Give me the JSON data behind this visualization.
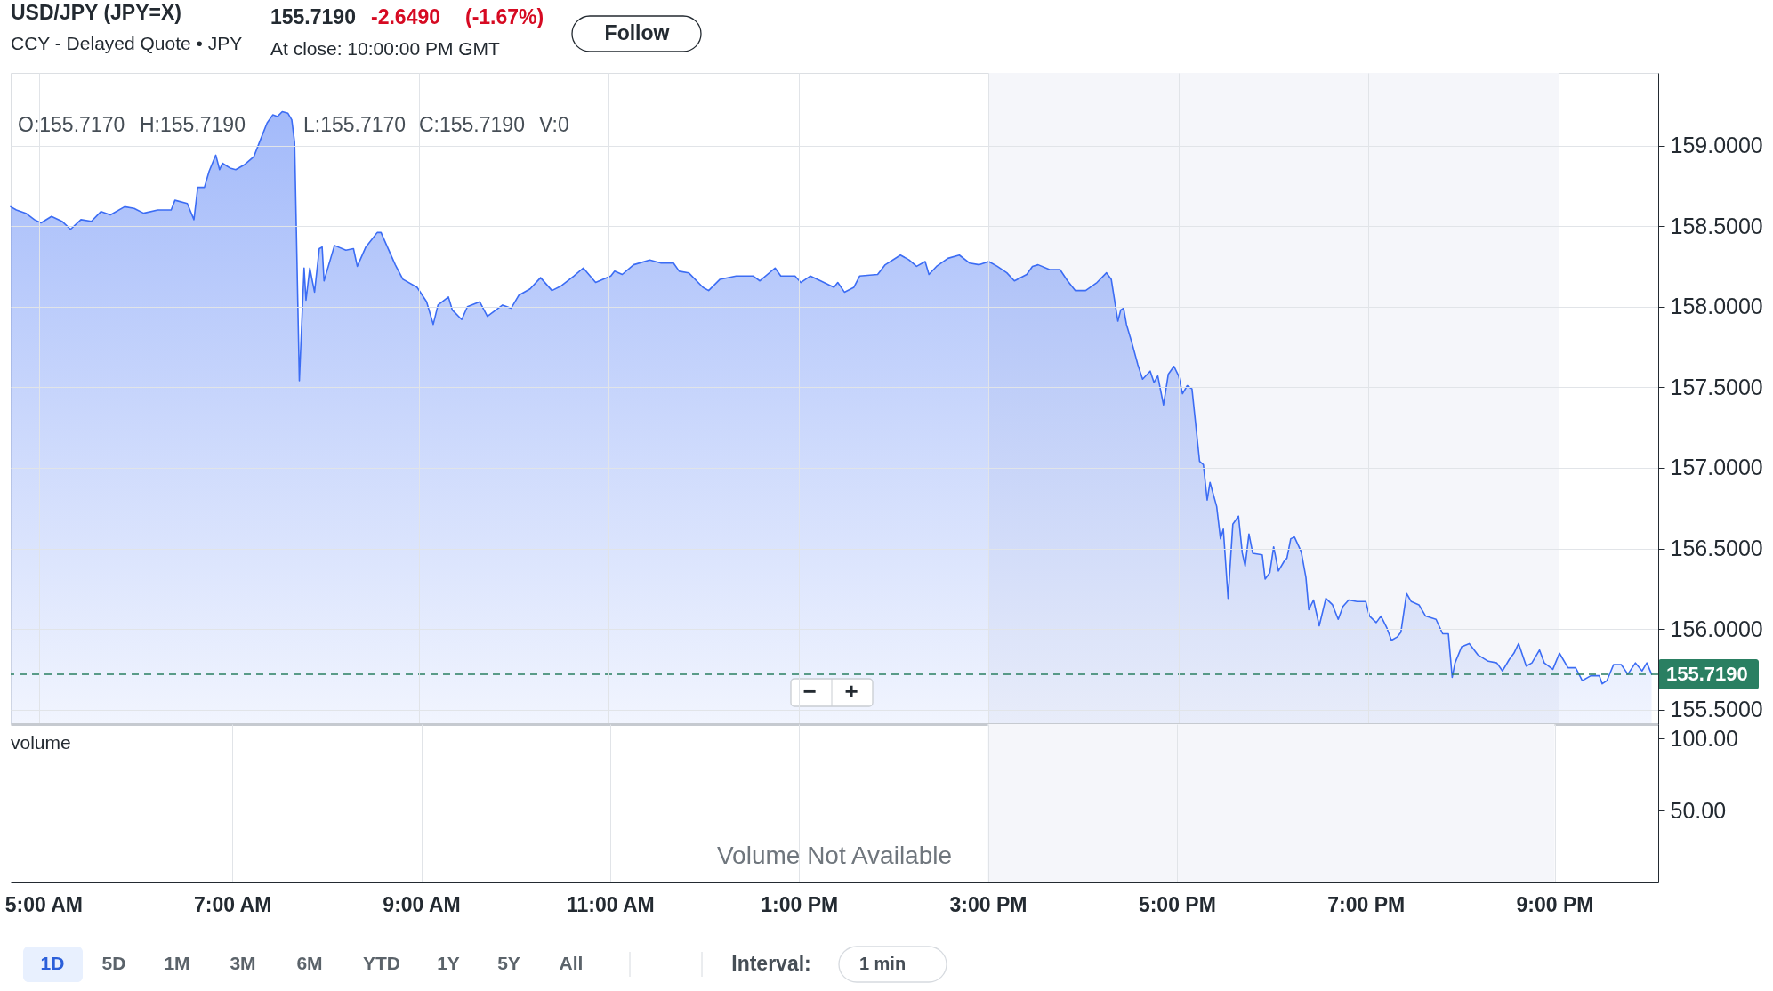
{
  "chart_data": [
    {
      "type": "area",
      "title": "USD/JPY (JPY=X)",
      "subtitle": "CCY - Delayed Quote • JPY",
      "annotations": [
        "155.7190",
        "-2.6490",
        "(-1.67%)",
        "At close: 10:00:00 PM GMT",
        "Follow",
        "O:155.7170",
        "H:155.7190",
        "L:155.7170",
        "C:155.7190",
        "V:0",
        "−",
        "+"
      ],
      "xlim": [
        4.7,
        22.05
      ],
      "xticks": [
        {
          "value": 5,
          "label": null
        },
        {
          "value": 7,
          "label": null
        },
        {
          "value": 9,
          "label": null
        },
        {
          "value": 11,
          "label": null
        },
        {
          "value": 13,
          "label": null
        },
        {
          "value": 15,
          "label": null
        },
        {
          "value": 17,
          "label": null
        },
        {
          "value": 19,
          "label": null
        },
        {
          "value": 21,
          "label": null
        }
      ],
      "ylim": [
        155.41,
        159.45
      ],
      "yticks": [
        {
          "value": 155.5,
          "label": "155.5000"
        },
        {
          "value": 156,
          "label": "156.0000"
        },
        {
          "value": 156.5,
          "label": "156.5000"
        },
        {
          "value": 157,
          "label": "157.0000"
        },
        {
          "value": 157.5,
          "label": "157.5000"
        },
        {
          "value": 158,
          "label": "158.0000"
        },
        {
          "value": 158.5,
          "label": "158.5000"
        },
        {
          "value": 159,
          "label": "159.0000"
        }
      ],
      "tick_labels": "y",
      "grid": true,
      "ref_lines": [
        {
          "axis": "y",
          "value": 155.719,
          "label": "155.7190",
          "color": "#2a7f62",
          "line_style": "dashed"
        }
      ],
      "bands": [
        {
          "axis": "x",
          "from": 15,
          "to": 21,
          "color": "#f5f6fa"
        }
      ],
      "series": [
        {
          "color": "#3b6cf4",
          "x": [
            4.7,
            4.76,
            4.86,
            4.95,
            5.02,
            5.13,
            5.24,
            5.33,
            5.44,
            5.55,
            5.65,
            5.75,
            5.9,
            6.0,
            6.1,
            6.25,
            6.39,
            6.43,
            6.56,
            6.63,
            6.67,
            6.74,
            6.79,
            6.86,
            6.9,
            6.93,
            7.01,
            7.07,
            7.16,
            7.26,
            7.32,
            7.4,
            7.46,
            7.51,
            7.56,
            7.62,
            7.66,
            7.69,
            7.74,
            7.79,
            7.81,
            7.85,
            7.9,
            7.95,
            7.98,
            8.0,
            8.11,
            8.23,
            8.31,
            8.35,
            8.44,
            8.56,
            8.6,
            8.66,
            8.75,
            8.83,
            8.98,
            9.08,
            9.15,
            9.2,
            9.31,
            9.35,
            9.45,
            9.51,
            9.64,
            9.72,
            9.88,
            9.97,
            10.05,
            10.17,
            10.28,
            10.4,
            10.5,
            10.63,
            10.73,
            10.86,
            11.02,
            11.06,
            11.14,
            11.26,
            11.43,
            11.55,
            11.68,
            11.74,
            11.84,
            11.99,
            12.05,
            12.17,
            12.34,
            12.52,
            12.59,
            12.75,
            12.81,
            12.96,
            13.02,
            13.12,
            13.23,
            13.37,
            13.41,
            13.48,
            13.58,
            13.64,
            13.83,
            13.91,
            14.07,
            14.16,
            14.24,
            14.33,
            14.37,
            14.45,
            14.57,
            14.69,
            14.8,
            14.9,
            15.0,
            15.09,
            15.19,
            15.27,
            15.4,
            15.46,
            15.52,
            15.64,
            15.75,
            15.83,
            15.91,
            16.02,
            16.14,
            16.24,
            16.29,
            16.33,
            16.36,
            16.39,
            16.42,
            16.45,
            16.51,
            16.57,
            16.62,
            16.7,
            16.74,
            16.78,
            16.84,
            16.89,
            16.95,
            17.0,
            17.04,
            17.09,
            17.14,
            17.22,
            17.26,
            17.3,
            17.33,
            17.4,
            17.44,
            17.47,
            17.52,
            17.57,
            17.63,
            17.67,
            17.7,
            17.74,
            17.78,
            17.88,
            17.91,
            17.96,
            18.0,
            18.05,
            18.11,
            18.14,
            18.18,
            18.22,
            18.29,
            18.34,
            18.37,
            18.42,
            18.48,
            18.55,
            18.62,
            18.68,
            18.73,
            18.79,
            18.88,
            18.97,
            19.01,
            19.08,
            19.13,
            19.19,
            19.24,
            19.3,
            19.34,
            19.4,
            19.45,
            19.53,
            19.6,
            19.71,
            19.78,
            19.84,
            19.88,
            19.91,
            19.98,
            20.06,
            20.15,
            20.26,
            20.35,
            20.41,
            20.48,
            20.53,
            20.58,
            20.66,
            20.72,
            20.8,
            20.85,
            20.94,
            21.01,
            21.1,
            21.18,
            21.25,
            21.34,
            21.43,
            21.46,
            21.51,
            21.58,
            21.66,
            21.73,
            21.81,
            21.88,
            21.93,
            21.98
          ],
          "values": [
            158.62,
            158.6,
            158.58,
            158.54,
            158.52,
            158.56,
            158.53,
            158.48,
            158.54,
            158.53,
            158.59,
            158.57,
            158.62,
            158.61,
            158.58,
            158.6,
            158.6,
            158.66,
            158.64,
            158.54,
            158.74,
            158.74,
            158.84,
            158.94,
            158.85,
            158.89,
            158.86,
            158.85,
            158.88,
            158.93,
            159.02,
            159.14,
            159.19,
            159.18,
            159.21,
            159.2,
            159.16,
            159.02,
            157.54,
            158.24,
            158.04,
            158.24,
            158.09,
            158.36,
            158.37,
            158.16,
            158.38,
            158.35,
            158.36,
            158.25,
            158.37,
            158.46,
            158.46,
            158.38,
            158.26,
            158.17,
            158.12,
            158.03,
            157.89,
            158.01,
            158.06,
            157.98,
            157.92,
            158.0,
            158.03,
            157.94,
            158.01,
            157.99,
            158.07,
            158.11,
            158.18,
            158.1,
            158.13,
            158.19,
            158.24,
            158.15,
            158.19,
            158.22,
            158.2,
            158.26,
            158.29,
            158.27,
            158.27,
            158.22,
            158.21,
            158.12,
            158.1,
            158.17,
            158.19,
            158.19,
            158.16,
            158.24,
            158.19,
            158.19,
            158.15,
            158.19,
            158.16,
            158.12,
            158.15,
            158.09,
            158.12,
            158.19,
            158.2,
            158.26,
            158.32,
            158.29,
            158.25,
            158.28,
            158.2,
            158.25,
            158.3,
            158.32,
            158.27,
            158.26,
            158.28,
            158.25,
            158.21,
            158.16,
            158.2,
            158.25,
            158.26,
            158.23,
            158.23,
            158.16,
            158.1,
            158.1,
            158.15,
            158.21,
            158.17,
            158.02,
            157.91,
            157.98,
            157.99,
            157.89,
            157.77,
            157.64,
            157.55,
            157.6,
            157.53,
            157.57,
            157.39,
            157.58,
            157.63,
            157.57,
            157.46,
            157.51,
            157.49,
            157.04,
            157.02,
            156.8,
            156.91,
            156.76,
            156.56,
            156.62,
            156.19,
            156.65,
            156.7,
            156.47,
            156.39,
            156.59,
            156.47,
            156.46,
            156.31,
            156.35,
            156.51,
            156.36,
            156.42,
            156.44,
            156.56,
            156.57,
            156.48,
            156.32,
            156.12,
            156.18,
            156.02,
            156.19,
            156.15,
            156.06,
            156.14,
            156.18,
            156.17,
            156.17,
            156.08,
            156.04,
            156.08,
            156.01,
            155.93,
            155.95,
            155.98,
            156.22,
            156.17,
            156.15,
            156.08,
            156.06,
            155.97,
            155.97,
            155.7,
            155.79,
            155.89,
            155.91,
            155.84,
            155.8,
            155.79,
            155.74,
            155.81,
            155.85,
            155.91,
            155.77,
            155.79,
            155.87,
            155.79,
            155.75,
            155.85,
            155.76,
            155.76,
            155.68,
            155.71,
            155.71,
            155.66,
            155.68,
            155.78,
            155.78,
            155.72,
            155.79,
            155.74,
            155.79,
            155.72
          ]
        }
      ]
    },
    {
      "type": "bar",
      "title": "volume",
      "annotations": [
        "Volume Not Available"
      ],
      "xlim": [
        4.7,
        22.05
      ],
      "xticks": [
        {
          "value": 5,
          "label": "5:00 AM"
        },
        {
          "value": 7,
          "label": "7:00 AM"
        },
        {
          "value": 9,
          "label": "9:00 AM"
        },
        {
          "value": 11,
          "label": "11:00 AM"
        },
        {
          "value": 13,
          "label": "1:00 PM"
        },
        {
          "value": 15,
          "label": "3:00 PM"
        },
        {
          "value": 17,
          "label": "5:00 PM"
        },
        {
          "value": 19,
          "label": "7:00 PM"
        },
        {
          "value": 21,
          "label": "9:00 PM"
        }
      ],
      "ylim": [
        0,
        110
      ],
      "yticks": [
        {
          "value": 50,
          "label": "50.00"
        },
        {
          "value": 100,
          "label": "100.00"
        }
      ],
      "grid": "x",
      "bands": [
        {
          "axis": "x",
          "from": 15,
          "to": 21,
          "color": "#f5f6fa"
        }
      ]
    },
    {
      "type": "other",
      "annotations": [
        "1D",
        "5D",
        "1M",
        "3M",
        "6M",
        "YTD",
        "1Y",
        "5Y",
        "All",
        "Interval:",
        "1 min"
      ]
    }
  ]
}
